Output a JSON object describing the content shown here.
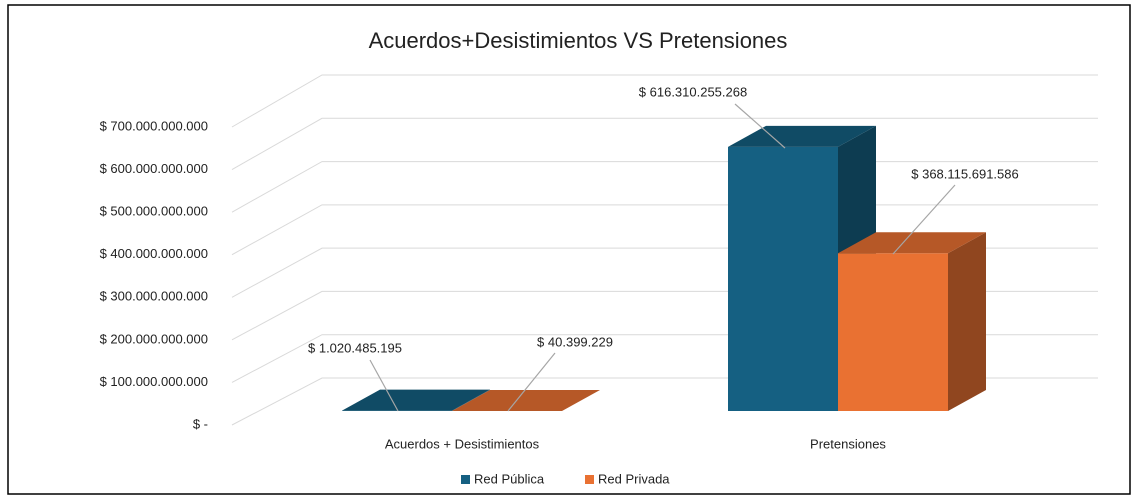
{
  "chart_data": {
    "type": "bar3d",
    "title": "Acuerdos+Desistimientos VS Pretensiones",
    "categories": [
      "Acuerdos + Desistimientos",
      "Pretensiones"
    ],
    "series": [
      {
        "name": "Red Pública",
        "color": "#156082",
        "values": [
          1020485195,
          616310255268
        ],
        "value_labels": [
          "$ 1.020.485.195",
          "$ 616.310.255.268"
        ]
      },
      {
        "name": "Red Privada",
        "color": "#e97132",
        "values": [
          40399229,
          368115691586
        ],
        "value_labels": [
          "$ 40.399.229",
          "$ 368.115.691.586"
        ]
      }
    ],
    "ylim": [
      0,
      700000000000
    ],
    "yticks": [
      {
        "value": 0,
        "label": "$ -"
      },
      {
        "value": 100000000000,
        "label": "$ 100.000.000.000"
      },
      {
        "value": 200000000000,
        "label": "$ 200.000.000.000"
      },
      {
        "value": 300000000000,
        "label": "$ 300.000.000.000"
      },
      {
        "value": 400000000000,
        "label": "$ 400.000.000.000"
      },
      {
        "value": 500000000000,
        "label": "$ 500.000.000.000"
      },
      {
        "value": 600000000000,
        "label": "$ 600.000.000.000"
      },
      {
        "value": 700000000000,
        "label": "$ 700.000.000.000"
      }
    ],
    "grid": true,
    "legend": "bottom"
  }
}
